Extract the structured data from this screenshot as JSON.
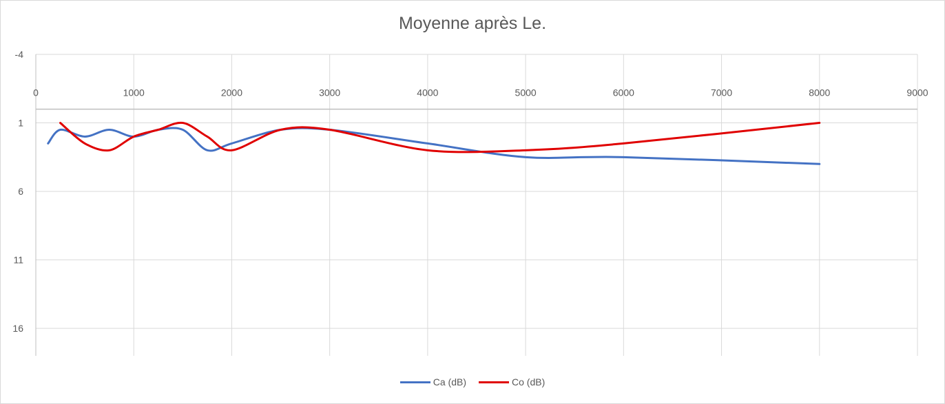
{
  "chart_data": {
    "type": "line",
    "title": "Moyenne après Le.",
    "xlabel": "",
    "ylabel": "",
    "xlim": [
      0,
      9000
    ],
    "ylim": [
      -4,
      18
    ],
    "y_reversed": true,
    "x_ticks": [
      0,
      1000,
      2000,
      3000,
      4000,
      5000,
      6000,
      7000,
      8000,
      9000
    ],
    "y_ticks": [
      -4,
      1,
      6,
      11,
      16
    ],
    "grid": true,
    "legend_position": "bottom",
    "series": [
      {
        "name": "Ca (dB)",
        "color": "#4472c4",
        "x": [
          125,
          250,
          500,
          750,
          1000,
          1250,
          1500,
          1750,
          2000,
          2500,
          3000,
          4000,
          5000,
          6000,
          8000
        ],
        "y": [
          2.5,
          1.5,
          2.0,
          1.5,
          2.0,
          1.5,
          1.5,
          3.0,
          2.5,
          1.5,
          1.5,
          2.5,
          3.5,
          3.5,
          4.0
        ]
      },
      {
        "name": "Co (dB)",
        "color": "#e00000",
        "x": [
          250,
          500,
          750,
          1000,
          1250,
          1500,
          1750,
          2000,
          2500,
          3000,
          4000,
          5000,
          6000,
          8000
        ],
        "y": [
          1.0,
          2.5,
          3.0,
          2.0,
          1.5,
          1.0,
          2.0,
          3.0,
          1.5,
          1.5,
          3.0,
          3.0,
          2.5,
          1.0
        ]
      }
    ]
  }
}
